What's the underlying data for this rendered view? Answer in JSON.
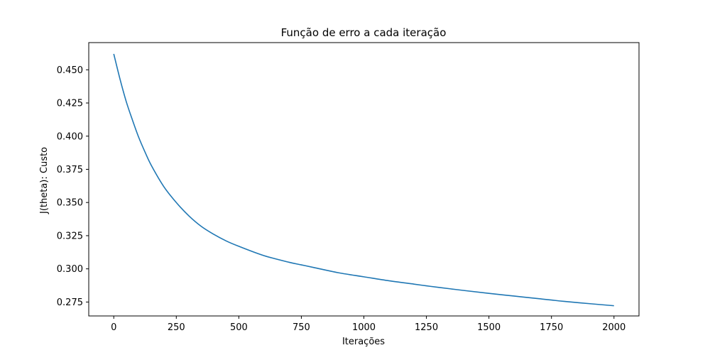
{
  "chart_data": {
    "type": "line",
    "title": "Função de erro a cada iteração",
    "xlabel": "Iterações",
    "ylabel": "J(theta): Custo",
    "xlim": [
      -100,
      2100
    ],
    "ylim": [
      0.2645,
      0.4705
    ],
    "xticks": [
      0,
      250,
      500,
      750,
      1000,
      1250,
      1500,
      1750,
      2000
    ],
    "yticks": [
      0.275,
      0.3,
      0.325,
      0.35,
      0.375,
      0.4,
      0.425,
      0.45
    ],
    "ytick_labels": [
      "0.275",
      "0.300",
      "0.325",
      "0.350",
      "0.375",
      "0.400",
      "0.425",
      "0.450"
    ],
    "grid": false,
    "series": [
      {
        "color": "#1f77b4",
        "x": [
          0,
          25,
          50,
          75,
          100,
          125,
          150,
          200,
          250,
          300,
          350,
          400,
          450,
          500,
          600,
          700,
          750,
          800,
          900,
          1000,
          1100,
          1200,
          1250,
          1300,
          1400,
          1500,
          1600,
          1700,
          1750,
          1800,
          1900,
          2000
        ],
        "y": [
          0.462,
          0.443,
          0.426,
          0.412,
          0.399,
          0.388,
          0.378,
          0.362,
          0.35,
          0.34,
          0.332,
          0.326,
          0.321,
          0.317,
          0.31,
          0.305,
          0.303,
          0.301,
          0.297,
          0.294,
          0.291,
          0.2885,
          0.2872,
          0.286,
          0.2837,
          0.2815,
          0.2795,
          0.2775,
          0.2765,
          0.2755,
          0.2738,
          0.2722
        ]
      }
    ]
  }
}
